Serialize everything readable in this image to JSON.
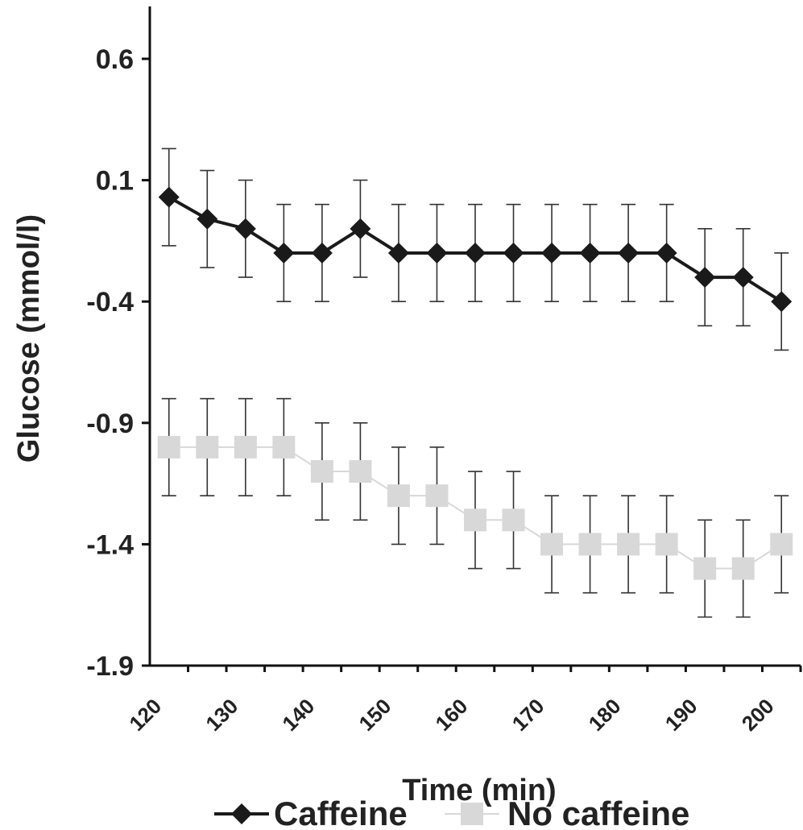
{
  "chart_data": {
    "type": "line",
    "title": "",
    "xlabel": "Time (min)",
    "ylabel": "Glucose (mmol/l)",
    "ylim": [
      -1.9,
      0.6
    ],
    "yticks": [
      0.6,
      0.1,
      -0.4,
      -0.9,
      -1.4,
      -1.9
    ],
    "ytick_labels": [
      "0.6",
      "0.1",
      "-0.4",
      "-0.9",
      "-1.4",
      "-1.9"
    ],
    "xlim": [
      120,
      205
    ],
    "xticks": [
      120,
      130,
      140,
      150,
      160,
      170,
      180,
      190,
      200
    ],
    "xtick_labels": [
      "120",
      "130",
      "140",
      "150",
      "160",
      "170",
      "180",
      "190",
      "200"
    ],
    "x": [
      122.5,
      127.5,
      132.5,
      137.5,
      142.5,
      147.5,
      152.5,
      157.5,
      162.5,
      167.5,
      172.5,
      177.5,
      182.5,
      187.5,
      192.5,
      197.5,
      202.5
    ],
    "grid": false,
    "legend_position": "bottom",
    "series": [
      {
        "name": "Caffeine",
        "color": "#1a1a1a",
        "marker": "diamond",
        "values": [
          0.03,
          -0.06,
          -0.1,
          -0.2,
          -0.2,
          -0.1,
          -0.2,
          -0.2,
          -0.2,
          -0.2,
          -0.2,
          -0.2,
          -0.2,
          -0.2,
          -0.3,
          -0.3,
          -0.4
        ],
        "error": 0.2
      },
      {
        "name": "No caffeine",
        "color": "#d8d8d8",
        "marker": "square",
        "values": [
          -1.0,
          -1.0,
          -1.0,
          -1.0,
          -1.1,
          -1.1,
          -1.2,
          -1.2,
          -1.3,
          -1.3,
          -1.4,
          -1.4,
          -1.4,
          -1.4,
          -1.5,
          -1.5,
          -1.4
        ],
        "error": 0.2
      }
    ]
  }
}
